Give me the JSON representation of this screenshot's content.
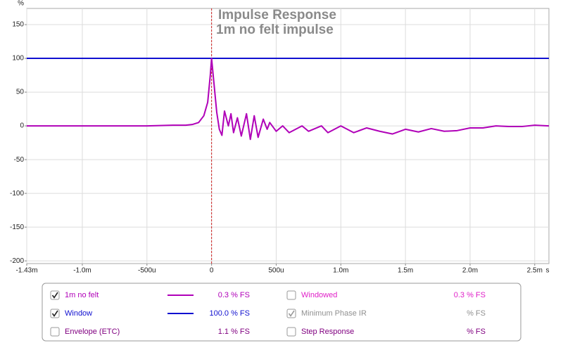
{
  "chart_data": {
    "type": "line",
    "title": "Impulse Response",
    "subtitle": "1m no felt impulse",
    "ylabel": "%",
    "xlabel": "s",
    "xlim": [
      -0.00143,
      0.00261
    ],
    "ylim": [
      -204,
      174
    ],
    "xticks": [
      {
        "value": -0.00143,
        "label": "-1.43m"
      },
      {
        "value": -0.001,
        "label": "-1.0m"
      },
      {
        "value": -0.0005,
        "label": "-500u"
      },
      0,
      {
        "value": 0.0005,
        "label": "500u"
      },
      {
        "value": 0.001,
        "label": "1.0m"
      },
      {
        "value": 0.0015,
        "label": "1.5m"
      },
      {
        "value": 0.002,
        "label": "2.0m"
      },
      {
        "value": 0.0025,
        "label": "2.5m"
      }
    ],
    "yticks": [
      -200,
      -150,
      -100,
      -50,
      0,
      50,
      100,
      150
    ],
    "grid": true,
    "series": [
      {
        "name": "1m no felt",
        "color": "#b000b8",
        "checked": true,
        "readout": "0.3 % FS",
        "x": [
          -0.00143,
          -0.001,
          -0.0005,
          -0.0003,
          -0.0002,
          -0.00015,
          -0.0001,
          -6e-05,
          -3e-05,
          -1e-05,
          0,
          2e-05,
          4e-05,
          6e-05,
          8e-05,
          0.0001,
          0.00013,
          0.00015,
          0.00017,
          0.0002,
          0.00023,
          0.00027,
          0.0003,
          0.00033,
          0.00036,
          0.0004,
          0.00043,
          0.00045,
          0.0005,
          0.00055,
          0.0006,
          0.0007,
          0.00075,
          0.00085,
          0.0009,
          0.001,
          0.0011,
          0.0012,
          0.0013,
          0.0014,
          0.0015,
          0.0016,
          0.0017,
          0.0018,
          0.0019,
          0.002,
          0.0021,
          0.0022,
          0.0023,
          0.0024,
          0.0025,
          0.00261
        ],
        "values": [
          0,
          0,
          0,
          1,
          1,
          2,
          5,
          15,
          35,
          75,
          100,
          60,
          20,
          -5,
          -14,
          22,
          0,
          18,
          -10,
          12,
          -15,
          18,
          -20,
          15,
          -17,
          10,
          -5,
          5,
          -8,
          0,
          -10,
          0,
          -8,
          0,
          -10,
          0,
          -10,
          -3,
          -8,
          -12,
          -5,
          -9,
          -4,
          -8,
          -7,
          -3,
          -3,
          0,
          -1,
          -1,
          1,
          0
        ]
      },
      {
        "name": "Window",
        "color": "#1010d0",
        "checked": true,
        "readout": "100.0 % FS",
        "x": [
          -0.00143,
          0.00261
        ],
        "values": [
          100,
          100
        ]
      }
    ],
    "other_traces": [
      {
        "name": "Envelope (ETC)",
        "color": "#800080",
        "checked": false,
        "readout": "1.1 % FS"
      },
      {
        "name": "Windowed",
        "color": "#e020c8",
        "checked": false,
        "readout": "0.3 % FS"
      },
      {
        "name": "Minimum Phase IR",
        "color": "#909090",
        "checked": true,
        "readout": "% FS"
      },
      {
        "name": "Step Response",
        "color": "#800080",
        "checked": false,
        "readout": "% FS"
      }
    ]
  }
}
